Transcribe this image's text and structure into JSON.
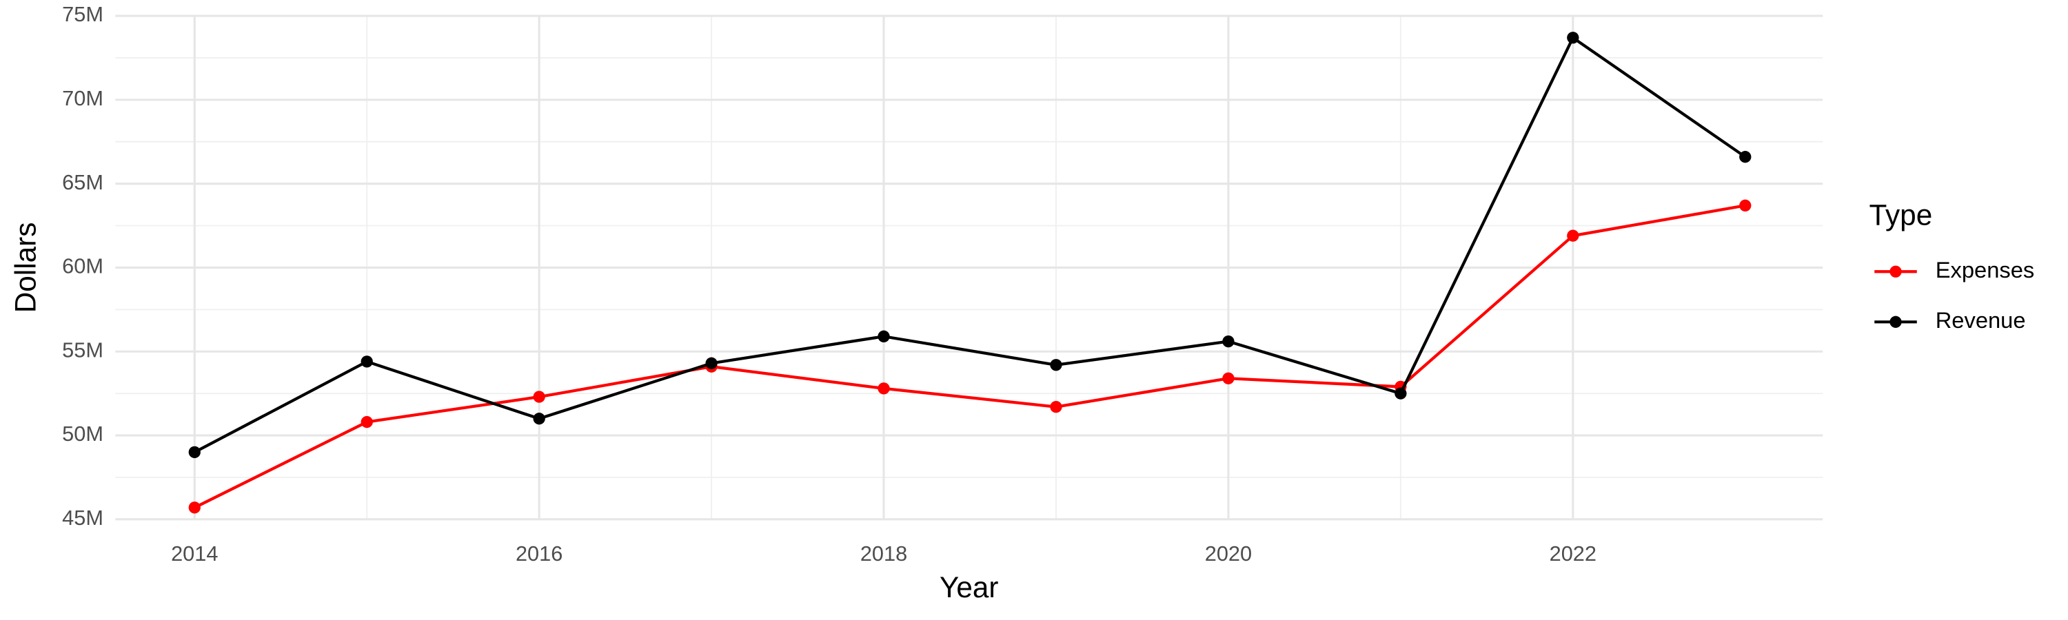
{
  "chart_data": {
    "type": "line",
    "x_label": "Year",
    "y_label": "Dollars",
    "legend_title": "Type",
    "x": [
      2014,
      2015,
      2016,
      2017,
      2018,
      2019,
      2020,
      2021,
      2022,
      2023
    ],
    "series": [
      {
        "name": "Expenses",
        "color": "#ff0000",
        "values": [
          45700000,
          50800000,
          52300000,
          54100000,
          52800000,
          51700000,
          53400000,
          52900000,
          61900000,
          63700000
        ]
      },
      {
        "name": "Revenue",
        "color": "#000000",
        "values": [
          49000000,
          54400000,
          51000000,
          54300000,
          55900000,
          54200000,
          55600000,
          52500000,
          73700000,
          66600000
        ]
      }
    ],
    "xlim": [
      2013.54,
      2023.45
    ],
    "xticks": [
      2014,
      2016,
      2018,
      2020,
      2022
    ],
    "ylim": [
      45000000,
      75000000
    ],
    "yticks": [
      {
        "value": 45000000,
        "label": "45M"
      },
      {
        "value": 50000000,
        "label": "50M"
      },
      {
        "value": 55000000,
        "label": "55M"
      },
      {
        "value": 60000000,
        "label": "60M"
      },
      {
        "value": 65000000,
        "label": "65M"
      },
      {
        "value": 70000000,
        "label": "70M"
      },
      {
        "value": 75000000,
        "label": "75M"
      }
    ],
    "grid": true,
    "legend_position": "right"
  }
}
